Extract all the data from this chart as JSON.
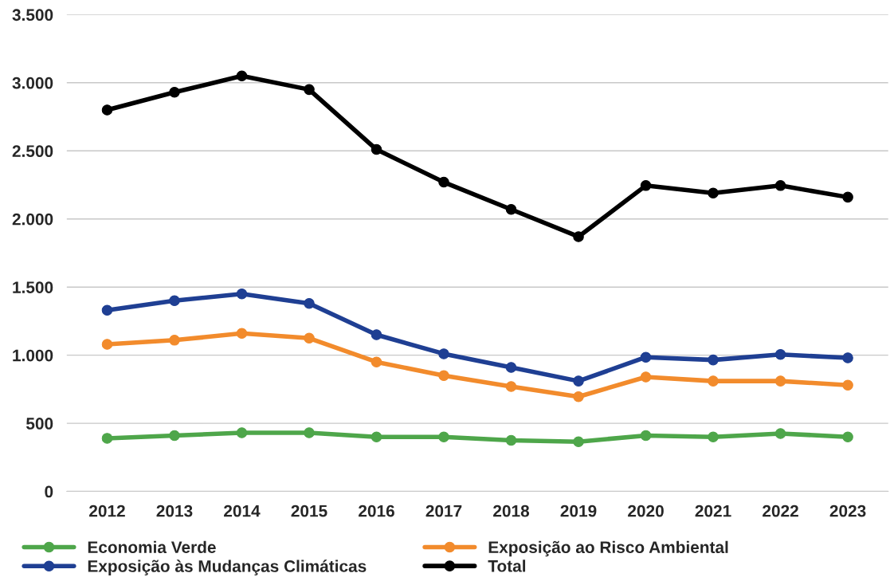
{
  "chart_data": {
    "type": "line",
    "categories": [
      "2012",
      "2013",
      "2014",
      "2015",
      "2016",
      "2017",
      "2018",
      "2019",
      "2020",
      "2021",
      "2022",
      "2023"
    ],
    "series": [
      {
        "name": "Economia Verde",
        "color": "#4ea64a",
        "values": [
          390,
          410,
          430,
          430,
          400,
          400,
          375,
          365,
          410,
          400,
          425,
          400
        ]
      },
      {
        "name": "Exposição às Mudanças Climáticas",
        "color": "#1f3f93",
        "values": [
          1330,
          1400,
          1450,
          1380,
          1150,
          1010,
          910,
          810,
          985,
          965,
          1005,
          980
        ]
      },
      {
        "name": "Exposição ao Risco Ambiental",
        "color": "#f28b2c",
        "values": [
          1080,
          1110,
          1160,
          1125,
          950,
          850,
          770,
          695,
          840,
          810,
          810,
          780
        ]
      },
      {
        "name": "Total",
        "color": "#000000",
        "values": [
          2800,
          2930,
          3050,
          2950,
          2510,
          2270,
          2070,
          1870,
          2245,
          2190,
          2245,
          2160
        ]
      }
    ],
    "ylim": [
      0,
      3500
    ],
    "yticks": [
      0,
      {
        "value": 500,
        "label": "500"
      },
      {
        "value": 1000,
        "label": "1.000"
      },
      {
        "value": 1500,
        "label": "1.500"
      },
      {
        "value": 2000,
        "label": "2.000"
      },
      {
        "value": 2500,
        "label": "2.500"
      },
      {
        "value": 3000,
        "label": "3.000"
      },
      {
        "value": 3500,
        "label": "3.500"
      }
    ],
    "grid": "y",
    "legend": "bottom",
    "marker": "circle",
    "line_style": "solid"
  }
}
